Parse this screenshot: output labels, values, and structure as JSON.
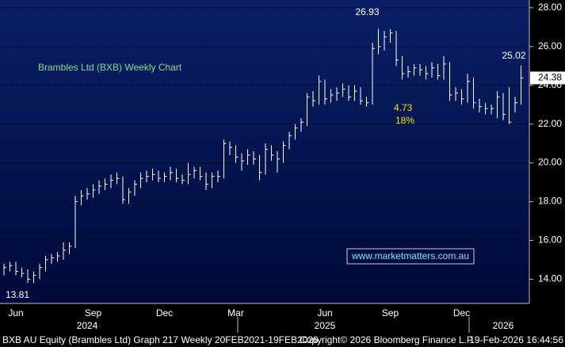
{
  "chart_data": {
    "type": "hlc",
    "title": "Brambles Ltd (BXB) Weekly Chart",
    "annotations": [
      "4.73",
      "18%"
    ],
    "website": "www.marketmatters.com.au",
    "footer": {
      "left": "BXB AU Equity (Brambles Ltd) Graph 217 Weekly 20FEB2021-19FEB2026",
      "center": "Copyright© 2026 Bloomberg Finance L.P.",
      "right": "19-Feb-2026 16:44:56"
    },
    "categories": [
      null,
      null,
      "Jun",
      null,
      null,
      null,
      null,
      null,
      null,
      null,
      null,
      null,
      null,
      null,
      null,
      "Sep",
      null,
      null,
      null,
      null,
      null,
      null,
      null,
      null,
      null,
      null,
      null,
      "Dec",
      null,
      null,
      null,
      null,
      null,
      null,
      null,
      null,
      null,
      null,
      null,
      "Mar",
      null,
      null,
      null,
      null,
      null,
      null,
      null,
      null,
      null,
      null,
      null,
      null,
      null,
      null,
      "Jun",
      null,
      null,
      null,
      null,
      null,
      null,
      null,
      null,
      null,
      null,
      "Sep",
      null,
      null,
      null,
      null,
      null,
      null,
      null,
      null,
      null,
      null,
      null,
      "Dec",
      null,
      null,
      null,
      null,
      null,
      null,
      null,
      null,
      null,
      null
    ],
    "year_labels": [
      null,
      null,
      null,
      null,
      null,
      null,
      null,
      null,
      null,
      null,
      null,
      null,
      null,
      null,
      "2024",
      null,
      null,
      null,
      null,
      null,
      null,
      null,
      null,
      null,
      null,
      null,
      null,
      null,
      null,
      null,
      null,
      null,
      null,
      null,
      null,
      null,
      null,
      null,
      null,
      null,
      null,
      null,
      null,
      null,
      null,
      null,
      null,
      null,
      null,
      null,
      null,
      null,
      null,
      null,
      "2025",
      null,
      null,
      null,
      null,
      null,
      null,
      null,
      null,
      null,
      null,
      null,
      null,
      null,
      null,
      null,
      null,
      null,
      null,
      null,
      null,
      null,
      null,
      null,
      null,
      null,
      null,
      null,
      null,
      null,
      "2026",
      null,
      null,
      null
    ],
    "high": [
      14.8,
      14.9,
      14.9,
      14.6,
      14.5,
      14.4,
      14.8,
      15.2,
      15.3,
      15.4,
      15.9,
      15.9,
      18.3,
      18.6,
      18.7,
      18.9,
      19.1,
      19.2,
      19.4,
      19.5,
      19.3,
      18.7,
      19.1,
      19.5,
      19.6,
      19.7,
      19.6,
      19.5,
      19.8,
      19.7,
      19.4,
      20.0,
      19.8,
      19.8,
      19.5,
      19.5,
      19.6,
      21.2,
      21.1,
      20.9,
      20.5,
      20.7,
      20.6,
      20.4,
      21.0,
      20.9,
      20.6,
      21.1,
      21.6,
      22.0,
      22.3,
      23.6,
      23.7,
      24.5,
      24.3,
      23.8,
      23.9,
      24.1,
      24.0,
      24.0,
      23.9,
      23.4,
      26.2,
      26.93,
      26.8,
      26.9,
      26.8,
      25.5,
      25.0,
      25.1,
      25.1,
      25.0,
      25.2,
      25.1,
      25.5,
      25.2,
      23.9,
      23.8,
      24.6,
      24.4,
      23.3,
      23.1,
      23.0,
      23.7,
      23.6,
      23.9,
      23.4,
      25.02
    ],
    "low": [
      14.2,
      14.4,
      14.2,
      14.1,
      13.81,
      13.8,
      14.0,
      14.4,
      14.8,
      14.9,
      15.0,
      15.3,
      15.6,
      17.8,
      18.1,
      18.2,
      18.4,
      18.6,
      18.7,
      18.9,
      17.9,
      17.9,
      18.3,
      18.7,
      19.0,
      19.1,
      19.0,
      19.0,
      19.1,
      19.0,
      18.9,
      18.9,
      19.2,
      19.1,
      18.6,
      18.7,
      19.0,
      19.2,
      20.4,
      20.0,
      19.6,
      19.9,
      19.9,
      19.1,
      19.4,
      20.1,
      19.5,
      20.0,
      20.7,
      21.2,
      21.6,
      21.9,
      22.9,
      23.0,
      23.0,
      23.1,
      23.2,
      23.4,
      23.2,
      23.2,
      23.0,
      22.9,
      23.0,
      25.6,
      25.8,
      26.2,
      25.0,
      24.3,
      24.4,
      24.5,
      24.5,
      24.3,
      24.4,
      24.3,
      24.3,
      23.2,
      23.2,
      23.0,
      23.1,
      22.8,
      22.6,
      22.5,
      22.5,
      22.3,
      22.2,
      22.0,
      22.6,
      23.0
    ],
    "close": [
      14.6,
      14.7,
      14.4,
      14.3,
      14.0,
      14.2,
      14.6,
      15.0,
      15.1,
      15.2,
      15.5,
      15.7,
      18.0,
      18.3,
      18.4,
      18.6,
      18.8,
      18.9,
      19.1,
      19.2,
      18.1,
      18.5,
      18.9,
      19.2,
      19.3,
      19.4,
      19.2,
      19.3,
      19.5,
      19.2,
      19.1,
      19.4,
      19.6,
      19.3,
      18.9,
      19.3,
      19.3,
      21.0,
      20.8,
      20.3,
      20.1,
      20.4,
      20.2,
      19.5,
      20.7,
      20.4,
      20.2,
      20.9,
      21.4,
      21.8,
      22.1,
      23.4,
      23.2,
      24.2,
      23.3,
      23.5,
      23.6,
      23.8,
      23.4,
      23.7,
      23.2,
      23.1,
      25.9,
      26.0,
      26.5,
      26.7,
      25.3,
      24.6,
      24.7,
      24.9,
      24.8,
      24.6,
      24.9,
      24.5,
      25.1,
      23.5,
      23.6,
      23.3,
      24.2,
      23.1,
      22.9,
      22.8,
      22.8,
      23.4,
      22.5,
      22.1,
      23.1,
      24.38
    ],
    "color": "#ffffff",
    "ylim": [
      12.75,
      28.4
    ],
    "yticks": [
      {
        "value": 14,
        "label": "14.00"
      },
      {
        "value": 16,
        "label": "16.00"
      },
      {
        "value": 18,
        "label": "18.00"
      },
      {
        "value": 20,
        "label": "20.00"
      },
      {
        "value": 22,
        "label": "22.00"
      },
      {
        "value": 24,
        "label": "24.00"
      },
      {
        "value": 26,
        "label": "26.00"
      },
      {
        "value": 28,
        "label": "28.00"
      }
    ],
    "grid": true
  }
}
